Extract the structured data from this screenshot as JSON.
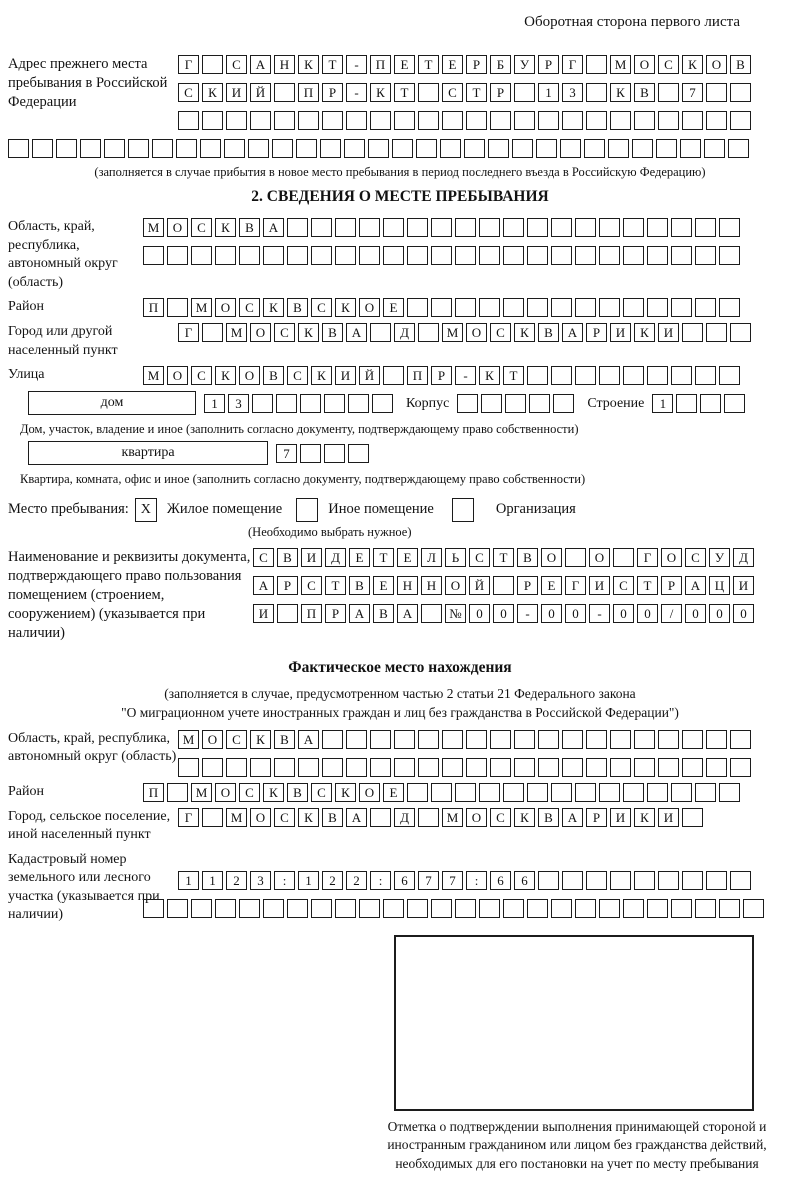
{
  "header": {
    "note": "Оборотная сторона первого листа"
  },
  "prev_address": {
    "label": "Адрес прежнего места пребывания в Российской Федерации",
    "rows": [
      "Г САНКТ-ПЕТЕРБУРГ МОСКОВ",
      "СКИЙ ПР-КТ СТР 13 КВ 7  ",
      "                        ",
      "                               "
    ],
    "caption": "(заполняется в случае прибытия в новое место пребывания в период последнего въезда в Российскую Федерацию)"
  },
  "section2": {
    "title": "2. СВЕДЕНИЯ О МЕСТЕ ПРЕБЫВАНИЯ",
    "region": {
      "label": "Область, край, республика, автономный округ (область)",
      "rows": [
        "МОСКВА                   ",
        "                         "
      ]
    },
    "district": {
      "label": "Район",
      "row": "П МОСКВСКОЕ              "
    },
    "city": {
      "label": "Город или другой населенный пункт",
      "row": "Г МОСКВА Д МОСКВАРИКИ   "
    },
    "street": {
      "label": "Улица",
      "row": "МОСКОВСКИЙ ПР-КТ         "
    },
    "house": {
      "box_label": "дом",
      "house_cells": "13      ",
      "korpus_label": "Корпус",
      "korpus_cells": "     ",
      "stroenie_label": "Строение",
      "stroenie_cells": "1   ",
      "caption": "Дом, участок, владение и иное (заполнить согласно документу, подтверждающему право собственности)"
    },
    "apartment": {
      "box_label": "квартира",
      "cells": "7   ",
      "caption": "Квартира, комната, офис и иное (заполнить согласно документу, подтверждающему право собственности)"
    },
    "stay_type": {
      "label": "Место пребывания:",
      "options": [
        {
          "label": "Жилое помещение",
          "mark": "X"
        },
        {
          "label": "Иное помещение",
          "mark": ""
        },
        {
          "label": "Организация",
          "mark": ""
        }
      ],
      "note": "(Необходимо выбрать нужное)"
    },
    "document": {
      "label": "Наименование и реквизиты документа, подтверждающего право пользования помещением (строением, сооружением) (указывается при наличии)",
      "rows": [
        "СВИДЕТЕЛЬСТВО О ГОСУД",
        "АРСТВЕННОЙ РЕГИСТРАЦИ",
        "И ПРАВА №00-00-00/000"
      ]
    }
  },
  "actual_location": {
    "title": "Фактическое место нахождения",
    "subtitle1": "(заполняется в случае, предусмотренном частью 2 статьи 21 Федерального закона",
    "subtitle2": "\"О миграционном учете иностранных граждан и лиц без гражданства в Российской Федерации\")",
    "region": {
      "label": "Область, край, республика, автономный округ (область)",
      "rows": [
        "МОСКВА                  ",
        "                        "
      ]
    },
    "district": {
      "label": "Район",
      "row": "П МОСКВСКОЕ              "
    },
    "city": {
      "label": "Город, сельское поселение, иной населенный пункт",
      "row": "Г МОСКВА Д МОСКВАРИКИ "
    },
    "cadastral": {
      "label": "Кадастровый номер земельного или лесного участка (указывается при наличии)",
      "rows": [
        "1123:122:677:66         ",
        "                          "
      ]
    },
    "stamp_caption": "Отметка о подтверждении выполнения принимающей стороной и иностранным гражданином или лицом без гражданства действий, необходимых для его постановки на учет по месту пребывания"
  }
}
